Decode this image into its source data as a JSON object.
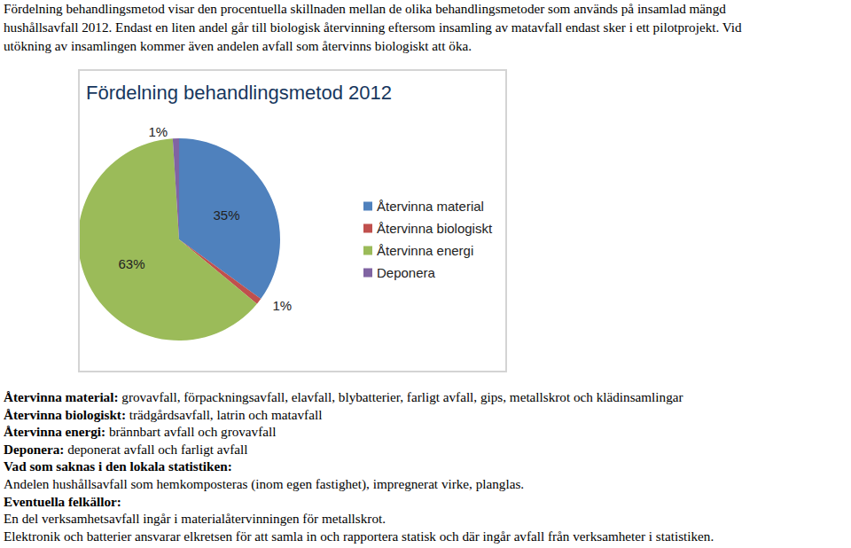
{
  "chart_data": {
    "type": "pie",
    "title": "Fördelning behandlingsmetod 2012",
    "categories": [
      "Återvinna material",
      "Återvinna biologiskt",
      "Återvinna energi",
      "Deponera"
    ],
    "values": [
      35,
      1,
      63,
      1
    ],
    "value_labels": [
      "35%",
      "1%",
      "63%",
      "1%"
    ],
    "colors": [
      "#4f81bd",
      "#c0504d",
      "#9bbb59",
      "#8064a2"
    ],
    "data_labels": true,
    "legend": "right"
  },
  "document": {
    "intro": [
      "Fördelning behandlingsmetod visar den procentuella skillnaden mellan de olika behandlingsmetoder som används på insamlad mängd",
      "hushållsavfall 2012. Endast en liten andel går till biologisk återvinning eftersom insamling av matavfall endast sker i ett pilotprojekt. Vid",
      "utökning av insamlingen kommer även andelen avfall som återvinns biologiskt att öka."
    ],
    "notes": [
      {
        "bold": "Återvinna material:",
        "text": "grovavfall, förpackningsavfall, elavfall, blybatterier, farligt avfall, gips, metallskrot och klädinsamlingar"
      },
      {
        "bold": "Återvinna biologiskt:",
        "text": "trädgårdsavfall, latrin och matavfall"
      },
      {
        "bold": "Återvinna energi:",
        "text": "brännbart avfall och grovavfall"
      },
      {
        "bold": "Deponera:",
        "text": "deponerat avfall och farligt avfall"
      },
      {
        "bold": "Vad som saknas i den lokala statistiken:"
      },
      {
        "text": "Andelen hushållsavfall som hemkomposteras (inom egen fastighet), impregnerat virke, planglas."
      },
      {
        "bold": "Eventuella felkällor:"
      },
      {
        "text": "En del verksamhetsavfall ingår i materialåtervinningen för metallskrot."
      },
      {
        "text": "Elektronik och batterier ansvarar elkretsen för att samla in och rapportera statisk och där ingår avfall från verksamheter i statistiken."
      }
    ]
  }
}
